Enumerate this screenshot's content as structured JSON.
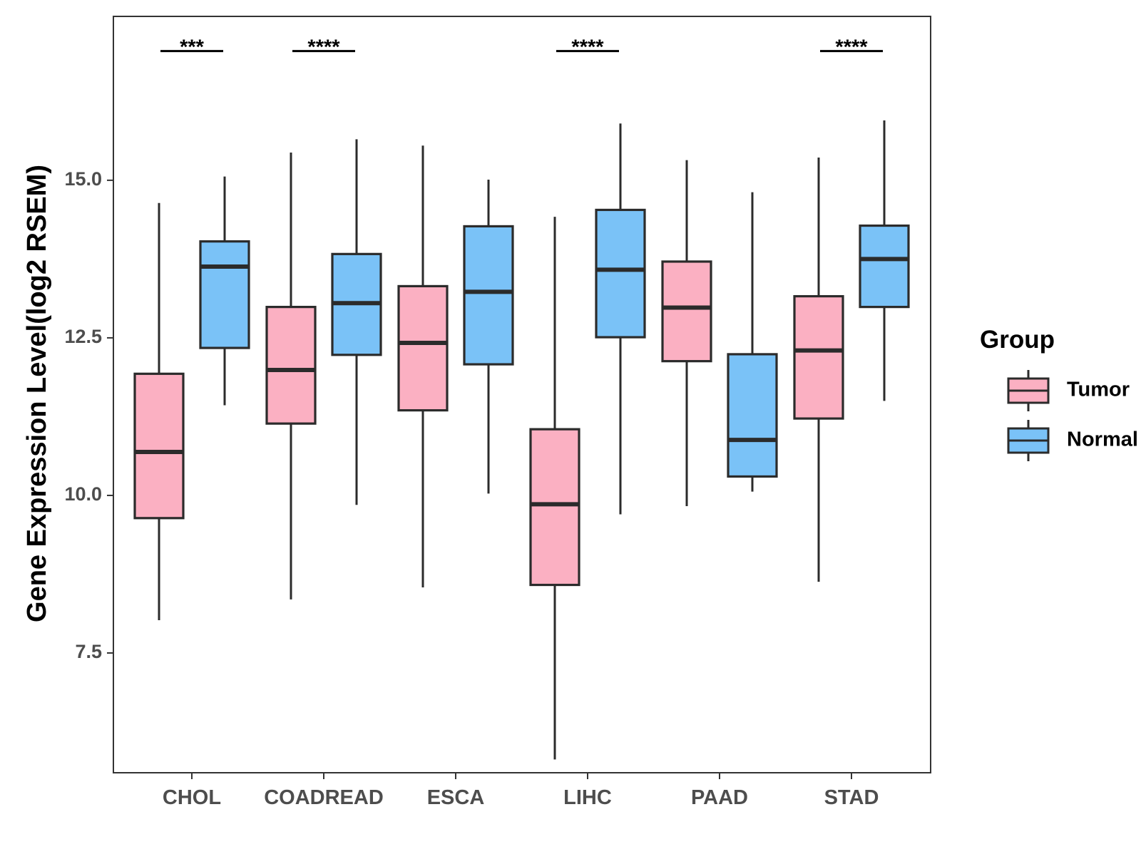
{
  "chart_data": {
    "type": "boxplot",
    "title": "",
    "xlabel": "",
    "ylabel": "Gene Expression Level(log2 RSEM)",
    "ylim": [
      5.6,
      17.6
    ],
    "yticks": [
      7.5,
      10.0,
      12.5,
      15.0
    ],
    "ytick_labels": [
      "7.5",
      "10.0",
      "12.5",
      "15.0"
    ],
    "categories": [
      "CHOL",
      "COADREAD",
      "ESCA",
      "LIHC",
      "PAAD",
      "STAD"
    ],
    "legend": {
      "title": "Group",
      "position": "right",
      "entries": [
        "Tumor",
        "Normal"
      ]
    },
    "series": [
      {
        "name": "Tumor",
        "color": "#FBB0C2",
        "boxes": [
          {
            "min": 8.02,
            "q1": 9.64,
            "median": 10.69,
            "q3": 11.93,
            "max": 14.64
          },
          {
            "min": 8.35,
            "q1": 11.14,
            "median": 11.99,
            "q3": 12.99,
            "max": 15.44
          },
          {
            "min": 8.54,
            "q1": 11.35,
            "median": 12.42,
            "q3": 13.32,
            "max": 15.55
          },
          {
            "min": 5.81,
            "q1": 8.58,
            "median": 9.86,
            "q3": 11.05,
            "max": 14.42
          },
          {
            "min": 9.83,
            "q1": 12.13,
            "median": 12.98,
            "q3": 13.71,
            "max": 15.32
          },
          {
            "min": 8.63,
            "q1": 11.22,
            "median": 12.3,
            "q3": 13.16,
            "max": 15.36
          }
        ]
      },
      {
        "name": "Normal",
        "color": "#7AC2F7",
        "boxes": [
          {
            "min": 11.43,
            "q1": 12.34,
            "median": 13.63,
            "q3": 14.03,
            "max": 15.06
          },
          {
            "min": 9.85,
            "q1": 12.23,
            "median": 13.05,
            "q3": 13.83,
            "max": 15.65
          },
          {
            "min": 10.03,
            "q1": 12.08,
            "median": 13.23,
            "q3": 14.27,
            "max": 15.01
          },
          {
            "min": 9.7,
            "q1": 12.51,
            "median": 13.58,
            "q3": 14.53,
            "max": 15.9
          },
          {
            "min": 10.06,
            "q1": 10.3,
            "median": 10.88,
            "q3": 12.24,
            "max": 14.81
          },
          {
            "min": 11.5,
            "q1": 12.99,
            "median": 13.75,
            "q3": 14.28,
            "max": 15.95
          }
        ]
      }
    ],
    "significance": [
      {
        "category": "CHOL",
        "label": "***"
      },
      {
        "category": "COADREAD",
        "label": "****"
      },
      {
        "category": "ESCA",
        "label": ""
      },
      {
        "category": "LIHC",
        "label": "****"
      },
      {
        "category": "PAAD",
        "label": ""
      },
      {
        "category": "STAD",
        "label": "****"
      }
    ],
    "significance_level": 17.05,
    "grid": false
  }
}
